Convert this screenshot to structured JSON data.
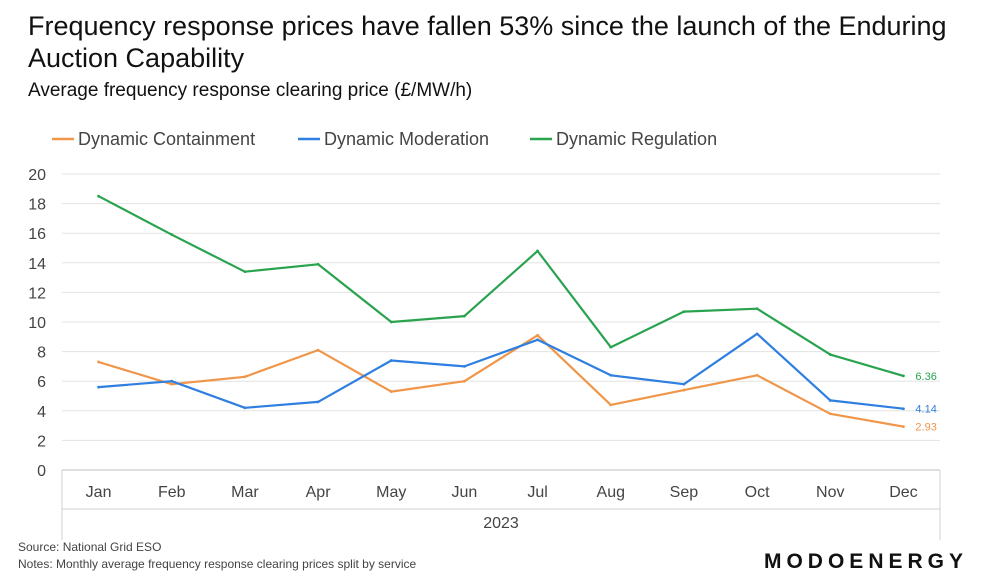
{
  "title": "Frequency response prices have fallen 53% since the launch of the Enduring Auction Capability",
  "subtitle": "Average frequency response clearing price (£/MW/h)",
  "source": "Source: National Grid ESO",
  "notes": "Notes: Monthly average frequency response clearing prices split by service",
  "brand": "MODOENERGY",
  "chart_data": {
    "type": "line",
    "categories": [
      "Jan",
      "Feb",
      "Mar",
      "Apr",
      "May",
      "Jun",
      "Jul",
      "Aug",
      "Sep",
      "Oct",
      "Nov",
      "Dec"
    ],
    "xlabel": "2023",
    "ylabel": "",
    "ylim": [
      0,
      20
    ],
    "yticks": [
      "0",
      "2",
      "4",
      "6",
      "8",
      "10",
      "12",
      "14",
      "16",
      "18",
      "20"
    ],
    "grid": true,
    "legend": "top",
    "series": [
      {
        "name": "Dynamic Containment",
        "color": "#F0964A",
        "values": [
          7.3,
          5.8,
          6.3,
          8.1,
          5.3,
          6.0,
          9.1,
          4.4,
          5.4,
          6.4,
          3.8,
          2.93
        ],
        "end_label": "2.93"
      },
      {
        "name": "Dynamic Moderation",
        "color": "#2E7FE0",
        "values": [
          5.6,
          6.0,
          4.2,
          4.6,
          7.4,
          7.0,
          8.8,
          6.4,
          5.8,
          9.2,
          4.7,
          4.14
        ],
        "end_label": "4.14"
      },
      {
        "name": "Dynamic Regulation",
        "color": "#2AA34F",
        "values": [
          18.5,
          15.9,
          13.4,
          13.9,
          10.0,
          10.4,
          14.8,
          8.3,
          10.7,
          10.9,
          7.8,
          6.36
        ],
        "end_label": "6.36"
      }
    ]
  }
}
